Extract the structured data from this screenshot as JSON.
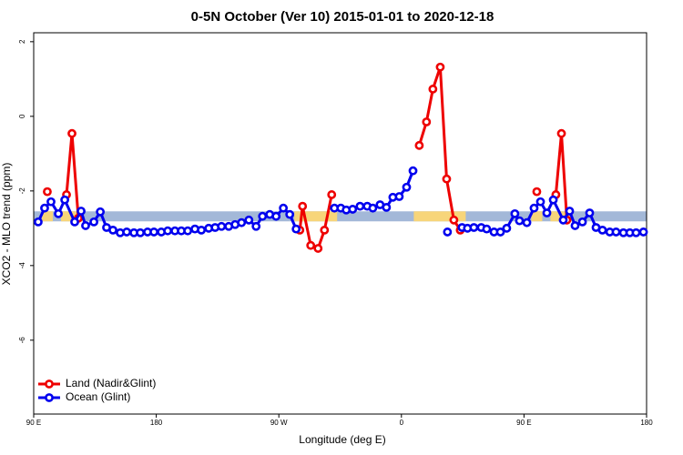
{
  "chart_data": {
    "type": "line",
    "title": "0-5N October (Ver 10)   2015-01-01 to 2020-12-18",
    "x_label": "Longitude (deg E)",
    "y_label": "XCO2 - MLO trend (ppm)",
    "xlim": [
      90,
      540
    ],
    "ylim": [
      -7.98,
      2.24
    ],
    "xticks": [
      {
        "value": 90,
        "label": "90 E"
      },
      180,
      {
        "value": 270,
        "label": "90 W"
      },
      {
        "value": 360,
        "label": "0"
      },
      {
        "value": 450,
        "label": "90 E"
      },
      {
        "value": 540,
        "label": "180"
      }
    ],
    "yticks": [
      2,
      0,
      -2,
      -4,
      -6
    ],
    "band": {
      "value": -2.68,
      "color": "#a3b8d8",
      "land_color": "#f7d57a"
    },
    "legend": "bottom-left",
    "series": [
      {
        "name": "Land (Nadir&Glint)",
        "color": "#ee0000",
        "x": [
          100,
          107,
          114.1,
          118.1,
          122.8,
          200,
          285.4,
          287.4,
          293.4,
          298.8,
          303.5,
          308.8,
          340,
          373.1,
          378.4,
          383.1,
          388.5,
          393.2,
          398.5,
          403.2,
          430,
          459.4,
          465,
          473.4,
          477.5,
          481.5
        ],
        "values": [
          -2.02,
          null,
          -2.1,
          -0.46,
          -2.73,
          null,
          -3.05,
          -2.41,
          -3.46,
          -3.54,
          -3.05,
          -2.1,
          null,
          -0.78,
          -0.15,
          0.73,
          1.32,
          -1.68,
          -2.78,
          -3.05,
          null,
          -2.02,
          null,
          -2.1,
          -0.46,
          -2.78
        ]
      },
      {
        "name": "Ocean (Glint)",
        "color": "#0000ee",
        "x": [
          93.3,
          98.0,
          102.7,
          108.1,
          112.8,
          120.1,
          124.8,
          128.1,
          134.2,
          138.9,
          143.5,
          148.2,
          153.5,
          158.3,
          163.6,
          168.3,
          173.6,
          178.3,
          183.7,
          188.4,
          193.7,
          198.4,
          203.1,
          208.4,
          213.1,
          218.5,
          223.2,
          227.9,
          233.2,
          237.9,
          242.6,
          248,
          253.3,
          258,
          263.3,
          268,
          273.3,
          278,
          282.7,
          295,
          310.8,
          315.5,
          319.5,
          324.2,
          329.6,
          334.9,
          339,
          344.3,
          349,
          353.7,
          358.4,
          363.8,
          368.5,
          380,
          393.8,
          400,
          404.5,
          408.5,
          413.2,
          418.6,
          422.6,
          428,
          432.7,
          437.3,
          443.3,
          446.7,
          452.1,
          457.4,
          462.1,
          466.8,
          471.5,
          478.8,
          483.5,
          487.5,
          492.9,
          498.2,
          502.9,
          507.6,
          513,
          517.6,
          523,
          527.7,
          532.3,
          537.7
        ],
        "values": [
          -2.83,
          -2.46,
          -2.29,
          -2.61,
          -2.24,
          -2.83,
          -2.54,
          -2.93,
          -2.83,
          -2.56,
          -2.98,
          -3.05,
          -3.12,
          -3.1,
          -3.12,
          -3.12,
          -3.1,
          -3.1,
          -3.1,
          -3.07,
          -3.07,
          -3.07,
          -3.07,
          -3.02,
          -3.05,
          -3.0,
          -2.98,
          -2.95,
          -2.95,
          -2.9,
          -2.85,
          -2.78,
          -2.95,
          -2.68,
          -2.63,
          -2.68,
          -2.46,
          -2.63,
          -3.02,
          null,
          -2.46,
          -2.46,
          -2.51,
          -2.49,
          -2.41,
          -2.41,
          -2.46,
          -2.37,
          -2.44,
          -2.17,
          -2.15,
          -1.9,
          -1.46,
          null,
          -3.1,
          null,
          -2.98,
          -3.0,
          -2.98,
          -2.98,
          -3.02,
          -3.1,
          -3.1,
          -3.0,
          -2.61,
          -2.8,
          -2.85,
          -2.46,
          -2.29,
          -2.59,
          -2.24,
          -2.78,
          -2.54,
          -2.93,
          -2.83,
          -2.59,
          -2.98,
          -3.05,
          -3.1,
          -3.1,
          -3.12,
          -3.12,
          -3.12,
          -3.1
        ]
      }
    ]
  }
}
